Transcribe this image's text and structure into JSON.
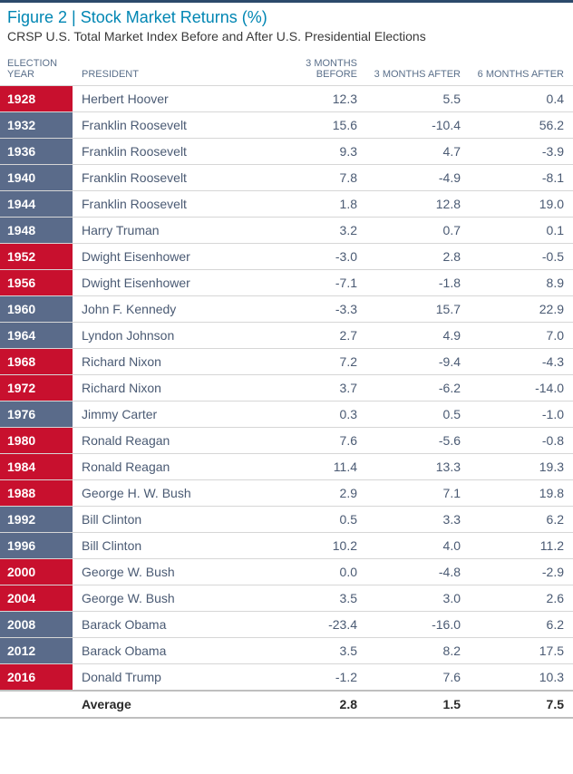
{
  "title": "Figure 2 | Stock Market Returns (%)",
  "subtitle": "CRSP U.S. Total Market Index Before and After U.S. Presidential Elections",
  "headers": {
    "year": "ELECTION YEAR",
    "president": "PRESIDENT",
    "before3": "3 MONTHS BEFORE",
    "after3": "3 MONTHS AFTER",
    "after6": "6 MONTHS AFTER"
  },
  "colors": {
    "republican": "#c8102e",
    "democrat": "#5a6b8a",
    "title": "#0086b3",
    "header_text": "#5a6f8a",
    "body_text": "#4a5a73",
    "border": "#d6d6d6",
    "top_border": "#2c4a6b"
  },
  "rows": [
    {
      "year": "1928",
      "party": "R",
      "president": "Herbert Hoover",
      "before3": "12.3",
      "after3": "5.5",
      "after6": "0.4"
    },
    {
      "year": "1932",
      "party": "D",
      "president": "Franklin Roosevelt",
      "before3": "15.6",
      "after3": "-10.4",
      "after6": "56.2"
    },
    {
      "year": "1936",
      "party": "D",
      "president": "Franklin Roosevelt",
      "before3": "9.3",
      "after3": "4.7",
      "after6": "-3.9"
    },
    {
      "year": "1940",
      "party": "D",
      "president": "Franklin Roosevelt",
      "before3": "7.8",
      "after3": "-4.9",
      "after6": "-8.1"
    },
    {
      "year": "1944",
      "party": "D",
      "president": "Franklin Roosevelt",
      "before3": "1.8",
      "after3": "12.8",
      "after6": "19.0"
    },
    {
      "year": "1948",
      "party": "D",
      "president": "Harry Truman",
      "before3": "3.2",
      "after3": "0.7",
      "after6": "0.1"
    },
    {
      "year": "1952",
      "party": "R",
      "president": "Dwight Eisenhower",
      "before3": "-3.0",
      "after3": "2.8",
      "after6": "-0.5"
    },
    {
      "year": "1956",
      "party": "R",
      "president": "Dwight Eisenhower",
      "before3": "-7.1",
      "after3": "-1.8",
      "after6": "8.9"
    },
    {
      "year": "1960",
      "party": "D",
      "president": "John F. Kennedy",
      "before3": "-3.3",
      "after3": "15.7",
      "after6": "22.9"
    },
    {
      "year": "1964",
      "party": "D",
      "president": "Lyndon Johnson",
      "before3": "2.7",
      "after3": "4.9",
      "after6": "7.0"
    },
    {
      "year": "1968",
      "party": "R",
      "president": "Richard Nixon",
      "before3": "7.2",
      "after3": "-9.4",
      "after6": "-4.3"
    },
    {
      "year": "1972",
      "party": "R",
      "president": "Richard Nixon",
      "before3": "3.7",
      "after3": "-6.2",
      "after6": "-14.0"
    },
    {
      "year": "1976",
      "party": "D",
      "president": "Jimmy Carter",
      "before3": "0.3",
      "after3": "0.5",
      "after6": "-1.0"
    },
    {
      "year": "1980",
      "party": "R",
      "president": "Ronald Reagan",
      "before3": "7.6",
      "after3": "-5.6",
      "after6": "-0.8"
    },
    {
      "year": "1984",
      "party": "R",
      "president": "Ronald Reagan",
      "before3": "11.4",
      "after3": "13.3",
      "after6": "19.3"
    },
    {
      "year": "1988",
      "party": "R",
      "president": "George H. W. Bush",
      "before3": "2.9",
      "after3": "7.1",
      "after6": "19.8"
    },
    {
      "year": "1992",
      "party": "D",
      "president": "Bill Clinton",
      "before3": "0.5",
      "after3": "3.3",
      "after6": "6.2"
    },
    {
      "year": "1996",
      "party": "D",
      "president": "Bill Clinton",
      "before3": "10.2",
      "after3": "4.0",
      "after6": "11.2"
    },
    {
      "year": "2000",
      "party": "R",
      "president": "George W. Bush",
      "before3": "0.0",
      "after3": "-4.8",
      "after6": "-2.9"
    },
    {
      "year": "2004",
      "party": "R",
      "president": "George W. Bush",
      "before3": "3.5",
      "after3": "3.0",
      "after6": "2.6"
    },
    {
      "year": "2008",
      "party": "D",
      "president": "Barack Obama",
      "before3": "-23.4",
      "after3": "-16.0",
      "after6": "6.2"
    },
    {
      "year": "2012",
      "party": "D",
      "president": "Barack Obama",
      "before3": "3.5",
      "after3": "8.2",
      "after6": "17.5"
    },
    {
      "year": "2016",
      "party": "R",
      "president": "Donald Trump",
      "before3": "-1.2",
      "after3": "7.6",
      "after6": "10.3"
    }
  ],
  "average": {
    "label": "Average",
    "before3": "2.8",
    "after3": "1.5",
    "after6": "7.5"
  }
}
